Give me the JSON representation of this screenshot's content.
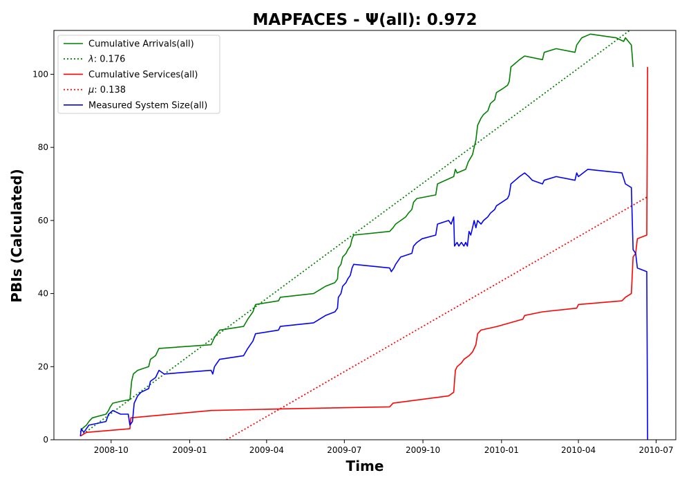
{
  "chart_data": {
    "type": "line",
    "title": "MAPFACES -  Ψ(all): 0.972",
    "xlabel": "Time",
    "ylabel": "PBIs (Calculated)",
    "xlim": [
      "2008-07-26",
      "2010-07-24"
    ],
    "ylim": [
      0,
      112
    ],
    "x_ticks": [
      "2008-10",
      "2009-01",
      "2009-04",
      "2009-07",
      "2009-10",
      "2010-01",
      "2010-04",
      "2010-07"
    ],
    "y_ticks": [
      0,
      20,
      40,
      60,
      80,
      100
    ],
    "grid": false,
    "legend_position": "top-left",
    "series": [
      {
        "name": "Cumulative Arrivals(all)",
        "color": "#008000",
        "style": "solid",
        "points": [
          [
            "2008-08-26",
            2
          ],
          [
            "2008-08-28",
            3
          ],
          [
            "2008-09-02",
            4
          ],
          [
            "2008-09-05",
            5
          ],
          [
            "2008-09-09",
            6
          ],
          [
            "2008-09-25",
            7
          ],
          [
            "2008-09-28",
            8
          ],
          [
            "2008-09-30",
            9
          ],
          [
            "2008-10-03",
            10
          ],
          [
            "2008-10-12",
            10.5
          ],
          [
            "2008-10-23",
            11
          ],
          [
            "2008-10-25",
            16
          ],
          [
            "2008-10-27",
            18
          ],
          [
            "2008-11-01",
            19
          ],
          [
            "2008-11-14",
            20
          ],
          [
            "2008-11-16",
            22
          ],
          [
            "2008-11-22",
            23
          ],
          [
            "2008-11-24",
            24
          ],
          [
            "2008-11-26",
            25
          ],
          [
            "2009-01-26",
            26
          ],
          [
            "2009-01-28",
            27
          ],
          [
            "2009-01-30",
            28
          ],
          [
            "2009-02-02",
            29
          ],
          [
            "2009-02-05",
            30
          ],
          [
            "2009-03-05",
            31
          ],
          [
            "2009-03-10",
            33
          ],
          [
            "2009-03-13",
            34
          ],
          [
            "2009-03-16",
            35
          ],
          [
            "2009-03-19",
            37
          ],
          [
            "2009-04-15",
            38
          ],
          [
            "2009-04-17",
            39
          ],
          [
            "2009-05-26",
            40
          ],
          [
            "2009-06-02",
            41
          ],
          [
            "2009-06-09",
            42
          ],
          [
            "2009-06-20",
            43
          ],
          [
            "2009-06-23",
            44
          ],
          [
            "2009-06-24",
            47
          ],
          [
            "2009-06-27",
            48
          ],
          [
            "2009-06-29",
            50
          ],
          [
            "2009-07-03",
            51
          ],
          [
            "2009-07-05",
            52
          ],
          [
            "2009-07-08",
            53
          ],
          [
            "2009-07-10",
            55
          ],
          [
            "2009-07-12",
            56
          ],
          [
            "2009-08-23",
            57
          ],
          [
            "2009-08-27",
            58
          ],
          [
            "2009-08-30",
            59
          ],
          [
            "2009-09-05",
            60
          ],
          [
            "2009-09-11",
            61
          ],
          [
            "2009-09-14",
            62
          ],
          [
            "2009-09-18",
            63
          ],
          [
            "2009-09-20",
            65
          ],
          [
            "2009-09-24",
            66
          ],
          [
            "2009-10-16",
            67
          ],
          [
            "2009-10-18",
            70
          ],
          [
            "2009-11-06",
            72
          ],
          [
            "2009-11-08",
            74
          ],
          [
            "2009-11-10",
            73
          ],
          [
            "2009-11-20",
            74
          ],
          [
            "2009-11-23",
            76
          ],
          [
            "2009-11-28",
            78
          ],
          [
            "2009-11-30",
            80
          ],
          [
            "2009-12-02",
            82
          ],
          [
            "2009-12-04",
            86
          ],
          [
            "2009-12-08",
            88
          ],
          [
            "2009-12-11",
            89
          ],
          [
            "2009-12-16",
            90
          ],
          [
            "2009-12-19",
            92
          ],
          [
            "2009-12-24",
            93
          ],
          [
            "2009-12-26",
            95
          ],
          [
            "2010-01-02",
            96
          ],
          [
            "2010-01-08",
            97
          ],
          [
            "2010-01-10",
            98
          ],
          [
            "2010-01-12",
            102
          ],
          [
            "2010-01-17",
            103
          ],
          [
            "2010-01-22",
            104
          ],
          [
            "2010-01-28",
            105
          ],
          [
            "2010-02-18",
            104
          ],
          [
            "2010-02-20",
            106
          ],
          [
            "2010-03-06",
            107
          ],
          [
            "2010-03-28",
            106
          ],
          [
            "2010-03-30",
            108
          ],
          [
            "2010-04-05",
            110
          ],
          [
            "2010-04-15",
            111
          ],
          [
            "2010-05-15",
            110
          ],
          [
            "2010-05-24",
            109
          ],
          [
            "2010-05-26",
            110
          ],
          [
            "2010-06-02",
            108
          ],
          [
            "2010-06-04",
            102
          ]
        ]
      },
      {
        "name": "λ: 0.176",
        "label_math": "λ",
        "label_rest": ": 0.176",
        "color": "#008000",
        "style": "dotted",
        "points": [
          [
            "2008-08-26",
            1
          ],
          [
            "2010-05-31",
            112
          ]
        ]
      },
      {
        "name": "Cumulative Services(all)",
        "color": "#ff0000",
        "style": "solid",
        "points": [
          [
            "2008-08-26",
            1
          ],
          [
            "2008-09-02",
            2
          ],
          [
            "2008-10-23",
            3
          ],
          [
            "2008-10-24",
            6
          ],
          [
            "2009-01-26",
            8
          ],
          [
            "2009-05-01",
            8.5
          ],
          [
            "2009-08-23",
            9
          ],
          [
            "2009-08-27",
            10
          ],
          [
            "2009-10-31",
            12
          ],
          [
            "2009-11-06",
            13
          ],
          [
            "2009-11-08",
            19
          ],
          [
            "2009-11-10",
            20
          ],
          [
            "2009-11-15",
            21
          ],
          [
            "2009-11-18",
            22
          ],
          [
            "2009-11-24",
            23
          ],
          [
            "2009-11-28",
            24
          ],
          [
            "2009-12-02",
            26
          ],
          [
            "2009-12-04",
            29
          ],
          [
            "2009-12-08",
            30
          ],
          [
            "2009-12-27",
            31
          ],
          [
            "2010-01-26",
            33
          ],
          [
            "2010-01-28",
            34
          ],
          [
            "2010-02-18",
            35
          ],
          [
            "2010-03-30",
            36
          ],
          [
            "2010-04-01",
            37
          ],
          [
            "2010-05-22",
            38
          ],
          [
            "2010-05-26",
            39
          ],
          [
            "2010-06-02",
            40
          ],
          [
            "2010-06-04",
            50
          ],
          [
            "2010-06-07",
            51
          ],
          [
            "2010-06-09",
            55
          ],
          [
            "2010-06-20",
            56
          ],
          [
            "2010-06-21",
            102
          ]
        ]
      },
      {
        "name": "μ: 0.138",
        "label_math": "μ",
        "label_rest": ": 0.138",
        "color": "#ff0000",
        "style": "dotted",
        "points": [
          [
            "2009-02-13",
            0
          ],
          [
            "2010-06-21",
            66.5
          ]
        ]
      },
      {
        "name": "Measured System Size(all)",
        "color": "#0000ff",
        "style": "solid",
        "points": [
          [
            "2008-08-26",
            1
          ],
          [
            "2008-08-27",
            3
          ],
          [
            "2008-08-30",
            2
          ],
          [
            "2008-09-02",
            3
          ],
          [
            "2008-09-05",
            4
          ],
          [
            "2008-09-25",
            5
          ],
          [
            "2008-09-28",
            7
          ],
          [
            "2008-10-03",
            8
          ],
          [
            "2008-10-12",
            7
          ],
          [
            "2008-10-21",
            7
          ],
          [
            "2008-10-23",
            4
          ],
          [
            "2008-10-26",
            5
          ],
          [
            "2008-10-28",
            10
          ],
          [
            "2008-11-01",
            12
          ],
          [
            "2008-11-05",
            13
          ],
          [
            "2008-11-14",
            14
          ],
          [
            "2008-11-16",
            16
          ],
          [
            "2008-11-22",
            17
          ],
          [
            "2008-11-24",
            18
          ],
          [
            "2008-11-26",
            19
          ],
          [
            "2008-12-02",
            18
          ],
          [
            "2009-01-26",
            19
          ],
          [
            "2009-01-28",
            18
          ],
          [
            "2009-01-30",
            20
          ],
          [
            "2009-02-02",
            21
          ],
          [
            "2009-02-05",
            22
          ],
          [
            "2009-03-05",
            23
          ],
          [
            "2009-03-10",
            25
          ],
          [
            "2009-03-13",
            26
          ],
          [
            "2009-03-16",
            27
          ],
          [
            "2009-03-19",
            29
          ],
          [
            "2009-04-15",
            30
          ],
          [
            "2009-04-17",
            31
          ],
          [
            "2009-05-26",
            32
          ],
          [
            "2009-06-02",
            33
          ],
          [
            "2009-06-09",
            34
          ],
          [
            "2009-06-20",
            35
          ],
          [
            "2009-06-23",
            36
          ],
          [
            "2009-06-24",
            39
          ],
          [
            "2009-06-27",
            40
          ],
          [
            "2009-06-29",
            42
          ],
          [
            "2009-07-03",
            43
          ],
          [
            "2009-07-05",
            44
          ],
          [
            "2009-07-08",
            45
          ],
          [
            "2009-07-10",
            47
          ],
          [
            "2009-07-12",
            48
          ],
          [
            "2009-08-23",
            47
          ],
          [
            "2009-08-25",
            46
          ],
          [
            "2009-08-28",
            47
          ],
          [
            "2009-08-30",
            48
          ],
          [
            "2009-09-05",
            50
          ],
          [
            "2009-09-18",
            51
          ],
          [
            "2009-09-20",
            53
          ],
          [
            "2009-09-24",
            54
          ],
          [
            "2009-09-30",
            55
          ],
          [
            "2009-10-16",
            56
          ],
          [
            "2009-10-18",
            59
          ],
          [
            "2009-10-31",
            60
          ],
          [
            "2009-11-03",
            59
          ],
          [
            "2009-11-06",
            61
          ],
          [
            "2009-11-07",
            53
          ],
          [
            "2009-11-10",
            54
          ],
          [
            "2009-11-12",
            53
          ],
          [
            "2009-11-15",
            54
          ],
          [
            "2009-11-18",
            53
          ],
          [
            "2009-11-20",
            54
          ],
          [
            "2009-11-22",
            53
          ],
          [
            "2009-11-24",
            57
          ],
          [
            "2009-11-26",
            56
          ],
          [
            "2009-11-28",
            58
          ],
          [
            "2009-11-30",
            60
          ],
          [
            "2009-12-02",
            58
          ],
          [
            "2009-12-04",
            60
          ],
          [
            "2009-12-08",
            59
          ],
          [
            "2009-12-11",
            60
          ],
          [
            "2009-12-16",
            61
          ],
          [
            "2009-12-19",
            62
          ],
          [
            "2009-12-24",
            63
          ],
          [
            "2009-12-26",
            64
          ],
          [
            "2010-01-08",
            66
          ],
          [
            "2010-01-10",
            67
          ],
          [
            "2010-01-12",
            70
          ],
          [
            "2010-01-17",
            71
          ],
          [
            "2010-01-22",
            72
          ],
          [
            "2010-01-28",
            73
          ],
          [
            "2010-02-02",
            72
          ],
          [
            "2010-02-06",
            71
          ],
          [
            "2010-02-18",
            70
          ],
          [
            "2010-02-20",
            71
          ],
          [
            "2010-03-06",
            72
          ],
          [
            "2010-03-28",
            71
          ],
          [
            "2010-03-30",
            73
          ],
          [
            "2010-04-01",
            72
          ],
          [
            "2010-04-12",
            74
          ],
          [
            "2010-05-22",
            73
          ],
          [
            "2010-05-26",
            70
          ],
          [
            "2010-06-02",
            69
          ],
          [
            "2010-06-04",
            52
          ],
          [
            "2010-06-07",
            51
          ],
          [
            "2010-06-09",
            47
          ],
          [
            "2010-06-20",
            46
          ],
          [
            "2010-06-21",
            0
          ]
        ]
      }
    ]
  }
}
